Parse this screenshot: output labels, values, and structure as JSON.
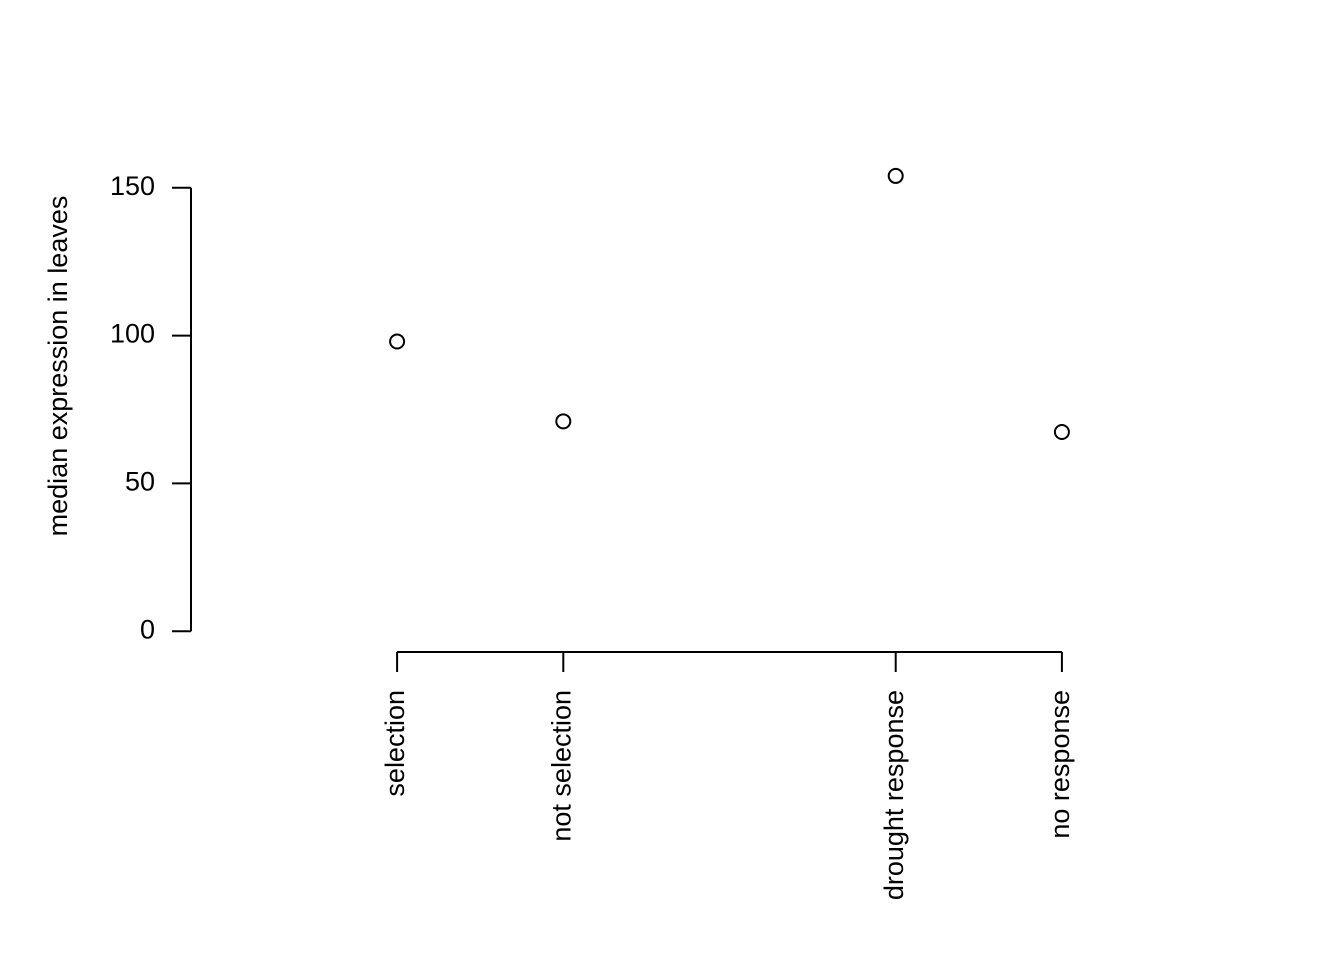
{
  "chart_data": {
    "type": "scatter",
    "y_label": "median expression in leaves",
    "x": [
      1,
      2,
      4,
      5
    ],
    "values": [
      98,
      71,
      154,
      67.4
    ],
    "xlim": [
      -0.24,
      6.24
    ],
    "ylim": [
      -6,
      156
    ],
    "xticks": [
      {
        "value": 1,
        "label": "selection"
      },
      {
        "value": 2,
        "label": "not selection"
      },
      {
        "value": 4,
        "label": "drought response"
      },
      {
        "value": 5,
        "label": "no response"
      }
    ],
    "yticks": [
      0,
      50,
      100,
      150
    ],
    "color": "#000000"
  }
}
